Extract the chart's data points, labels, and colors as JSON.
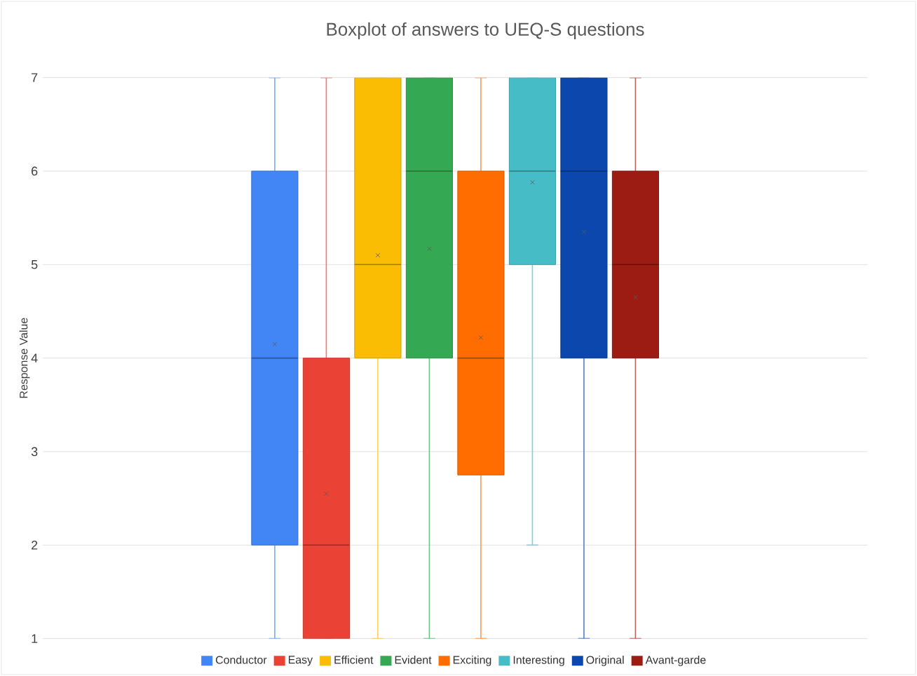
{
  "chart_data": {
    "type": "box",
    "title": "Boxplot of answers to UEQ-S questions",
    "ylabel": "Response Value",
    "categories": [
      null
    ],
    "ylim": [
      1,
      7
    ],
    "yticks": [
      1,
      2,
      3,
      4,
      5,
      6,
      7
    ],
    "grid": "y",
    "legend": "bottom",
    "tick_labels": "y",
    "series": [
      {
        "name": "Conductor",
        "color": "#4285f4",
        "boxes": [
          {
            "low": 1,
            "q1": 2,
            "median": 4,
            "q3": 6,
            "high": 7,
            "mean": 4.15
          }
        ]
      },
      {
        "name": "Easy",
        "color": "#ea4335",
        "boxes": [
          {
            "low": 1,
            "q1": 1,
            "median": 2,
            "q3": 4,
            "high": 7,
            "mean": 2.55
          }
        ]
      },
      {
        "name": "Efficient",
        "color": "#fbbc04",
        "boxes": [
          {
            "low": 1,
            "q1": 4,
            "median": 5,
            "q3": 7,
            "high": 7,
            "mean": 5.1
          }
        ]
      },
      {
        "name": "Evident",
        "color": "#34a853",
        "boxes": [
          {
            "low": 1,
            "q1": 4,
            "median": 6,
            "q3": 7,
            "high": 7,
            "mean": 5.17
          }
        ]
      },
      {
        "name": "Exciting",
        "color": "#ff6d01",
        "boxes": [
          {
            "low": 1,
            "q1": 2.75,
            "median": 4,
            "q3": 6,
            "high": 7,
            "mean": 4.22
          }
        ]
      },
      {
        "name": "Interesting",
        "color": "#46bdc6",
        "boxes": [
          {
            "low": 2,
            "q1": 5,
            "median": 6,
            "q3": 7,
            "high": 7,
            "mean": 5.88
          }
        ]
      },
      {
        "name": "Original",
        "color": "#0b47ad",
        "boxes": [
          {
            "low": 1,
            "q1": 4,
            "median": 6,
            "q3": 7,
            "high": 7,
            "mean": 5.35
          }
        ]
      },
      {
        "name": "Avant-garde",
        "color": "#9c1c13",
        "boxes": [
          {
            "low": 1,
            "q1": 4,
            "median": 5,
            "q3": 6,
            "high": 7,
            "mean": 4.65
          }
        ]
      }
    ]
  }
}
